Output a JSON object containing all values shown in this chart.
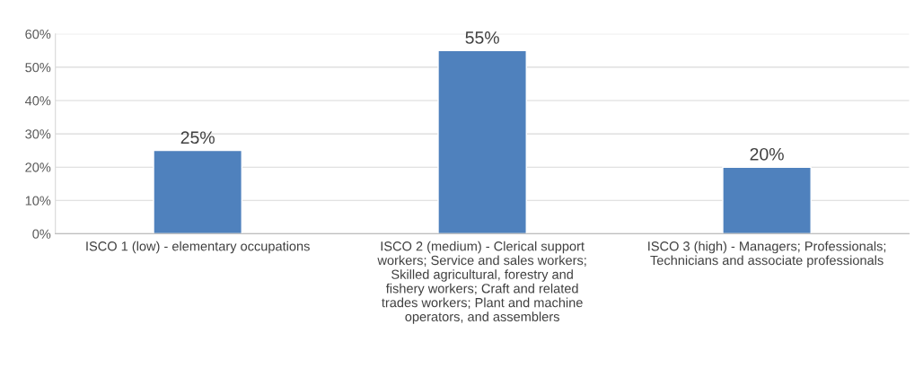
{
  "chart_data": {
    "type": "bar",
    "categories": [
      "ISCO 1 (low) - elementary occupations",
      "ISCO 2 (medium) - Clerical support workers; Service and sales workers; Skilled agricultural, forestry and fishery workers; Craft and related trades workers; Plant and machine operators, and assemblers",
      "ISCO 3 (high) - Managers; Professionals; Technicians and associate professionals"
    ],
    "values": [
      25,
      55,
      20
    ],
    "value_labels": [
      "25%",
      "55%",
      "20%"
    ],
    "color": "#4f81bd",
    "ylim": [
      0,
      60
    ],
    "yticks": [
      {
        "value": 0,
        "label": "0%"
      },
      {
        "value": 10,
        "label": "10%"
      },
      {
        "value": 20,
        "label": "20%"
      },
      {
        "value": 30,
        "label": "30%"
      },
      {
        "value": 40,
        "label": "40%"
      },
      {
        "value": 50,
        "label": "50%"
      },
      {
        "value": 60,
        "label": "60%"
      }
    ],
    "grid": "y"
  }
}
